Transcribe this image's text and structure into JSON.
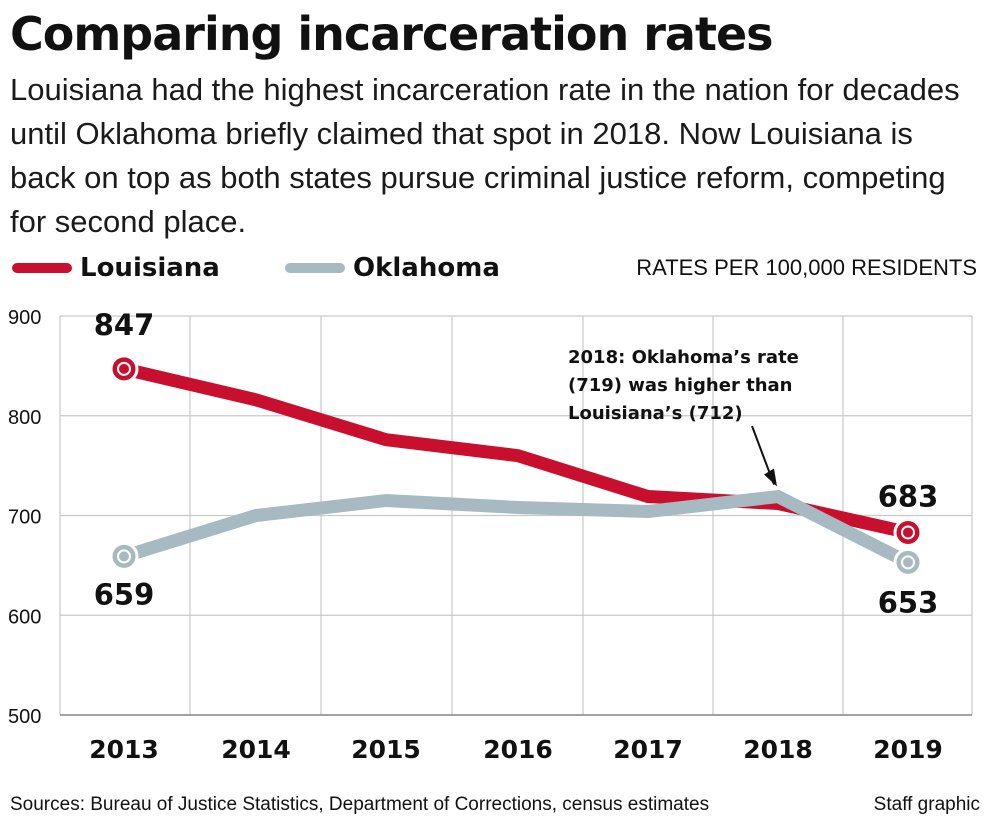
{
  "header": {
    "title": "Comparing incarceration rates",
    "subtitle": "Louisiana had the highest incarceration rate in the nation for decades until Oklahoma briefly claimed that spot in 2018. Now Louisiana is back on top as both states pursue criminal justice reform, competing for second place."
  },
  "legend": {
    "items": [
      {
        "label": "Louisiana",
        "color": "#c8102e"
      },
      {
        "label": "Oklahoma",
        "color": "#a7b9c1"
      }
    ],
    "units": "RATES PER 100,000 RESIDENTS"
  },
  "chart_data": {
    "type": "line",
    "x": [
      "2013",
      "2014",
      "2015",
      "2016",
      "2017",
      "2018",
      "2019"
    ],
    "yticks": [
      "900",
      "800",
      "700",
      "600",
      "500"
    ],
    "ylim": [
      500,
      900
    ],
    "grid": true,
    "series": [
      {
        "name": "Louisiana",
        "color": "#c8102e",
        "values": [
          847,
          816,
          776,
          760,
          719,
          712,
          683
        ]
      },
      {
        "name": "Oklahoma",
        "color": "#a7b9c1",
        "values": [
          659,
          700,
          715,
          708,
          704,
          719,
          653
        ]
      }
    ],
    "point_labels": {
      "louisiana_start": "847",
      "louisiana_end": "683",
      "oklahoma_start": "659",
      "oklahoma_end": "653"
    },
    "annotation": {
      "line1": "2018: Oklahoma’s rate",
      "line2": "(719) was higher than",
      "line3": "Louisiana’s (712)"
    }
  },
  "footer": {
    "sources": "Sources: Bureau of Justice Statistics, Department of Corrections, census estimates",
    "credit": "Staff graphic"
  }
}
